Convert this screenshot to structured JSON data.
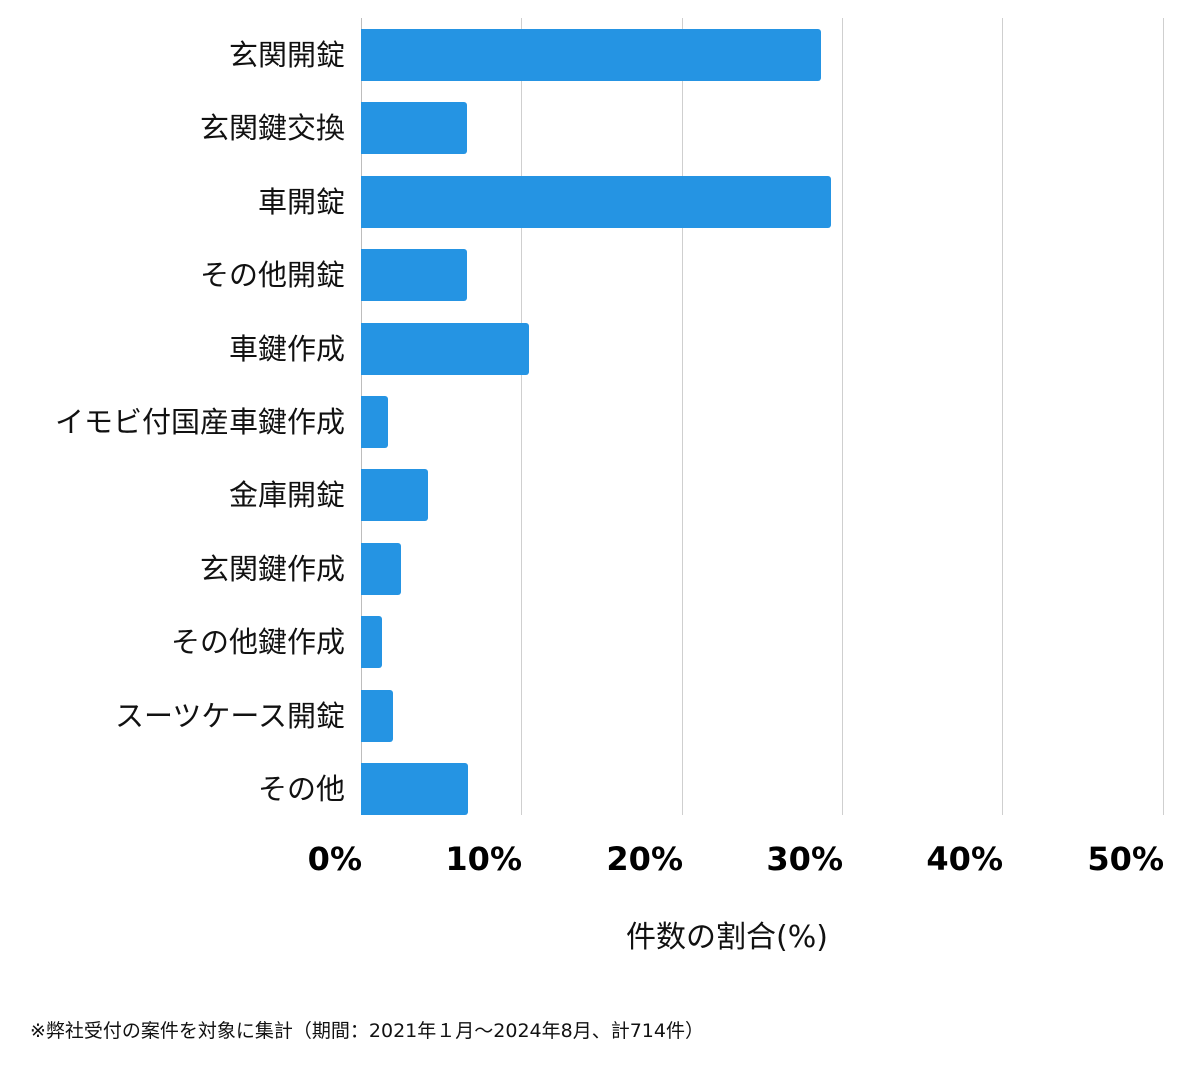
{
  "chart_data": {
    "type": "bar",
    "orientation": "horizontal",
    "title": "",
    "categories": [
      "玄関開錠",
      "玄関鍵交換",
      "車開錠",
      "その他開錠",
      "車鍵作成",
      "イモビ付国産車鍵作成",
      "金庫開錠",
      "玄関鍵作成",
      "その他鍵作成",
      "スーツケース開錠",
      "その他"
    ],
    "values": [
      28.7,
      6.6,
      29.3,
      6.6,
      10.5,
      1.7,
      4.2,
      2.5,
      1.3,
      2.0,
      6.7
    ],
    "xlabel": "件数の割合(%)",
    "ylabel": "",
    "xlim": [
      0,
      50
    ],
    "xticks": [
      0,
      10,
      20,
      30,
      40,
      50
    ],
    "xtick_labels": [
      "0%",
      "10%",
      "20%",
      "30%",
      "40%",
      "50%"
    ],
    "grid": true,
    "legend": null,
    "bar_color": "#2594e3"
  },
  "footnote": "※弊社受付の案件を対象に集計（期間：2021年１月～2024年8月、計714件）"
}
